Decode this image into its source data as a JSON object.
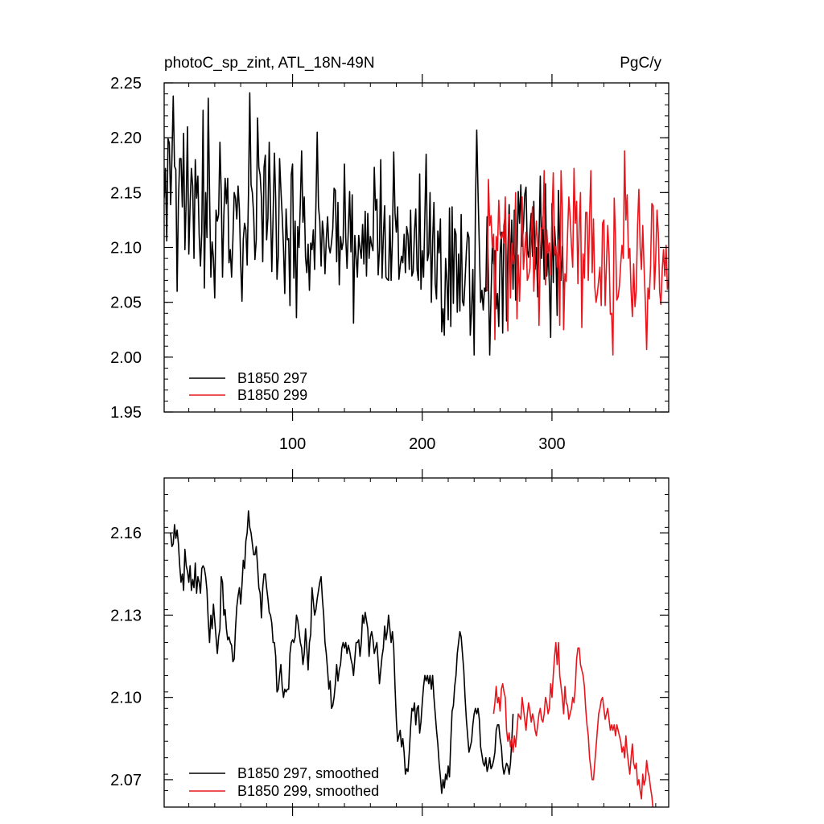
{
  "chart_data": [
    {
      "type": "line",
      "title": "photoC_sp_zint, ATL_18N-49N",
      "units": "PgC/y",
      "xlim": [
        1,
        390
      ],
      "ylim": [
        1.95,
        2.25
      ],
      "xticks": [
        100,
        200,
        300
      ],
      "xtick_labels": [
        "100",
        "200",
        "300"
      ],
      "yticks": [
        1.95,
        2.0,
        2.05,
        2.1,
        2.15,
        2.2,
        2.25
      ],
      "ytick_labels": [
        "1.95",
        "2.00",
        "2.05",
        "2.10",
        "2.15",
        "2.20",
        "2.25"
      ],
      "legend_position": "bottom-left",
      "series": [
        {
          "name": "B1850 297",
          "color": "#000000",
          "x_start": 1,
          "values": [
            2.145,
            2.172,
            2.106,
            2.199,
            2.195,
            2.139,
            2.182,
            2.238,
            2.174,
            2.171,
            2.06,
            2.142,
            2.181,
            2.181,
            2.137,
            2.204,
            2.098,
            2.143,
            2.21,
            2.094,
            2.139,
            2.172,
            2.156,
            2.09,
            2.18,
            2.145,
            2.165,
            2.111,
            2.083,
            2.114,
            2.225,
            2.063,
            2.15,
            2.109,
            2.236,
            2.15,
            2.073,
            2.105,
            2.09,
            2.054,
            2.134,
            2.124,
            2.13,
            2.196,
            2.15,
            2.073,
            2.128,
            2.163,
            2.14,
            2.163,
            2.086,
            2.098,
            2.073,
            2.107,
            2.15,
            2.145,
            2.126,
            2.156,
            2.135,
            2.086,
            2.051,
            2.107,
            2.122,
            2.116,
            2.084,
            2.148,
            2.241,
            2.157,
            2.15,
            2.13,
            2.089,
            2.107,
            2.218,
            2.173,
            2.166,
            2.145,
            2.087,
            2.173,
            2.184,
            2.107,
            2.127,
            2.196,
            2.136,
            2.078,
            2.129,
            2.186,
            2.144,
            2.071,
            2.092,
            2.181,
            2.153,
            2.129,
            2.1,
            2.058,
            2.135,
            2.107,
            2.108,
            2.047,
            2.166,
            2.176,
            2.072,
            2.124,
            2.036,
            2.119,
            2.1,
            2.141,
            2.188,
            2.123,
            2.146,
            2.091,
            2.077,
            2.103,
            2.061,
            2.104,
            2.098,
            2.116,
            2.08,
            2.138,
            2.205,
            2.137,
            2.124,
            2.083,
            2.124,
            2.111,
            2.076,
            2.107,
            2.128,
            2.101,
            2.095,
            2.104,
            2.117,
            2.154,
            2.152,
            2.087,
            2.141,
            2.066,
            2.11,
            2.098,
            2.105,
            2.176,
            2.109,
            2.081,
            2.117,
            2.151,
            2.096,
            2.148,
            2.031,
            2.111,
            2.091,
            2.073,
            2.111,
            2.099,
            2.09,
            2.121,
            2.085,
            2.133,
            2.074,
            2.131,
            2.09,
            2.11,
            2.102,
            2.097,
            2.173,
            2.134,
            2.144,
            2.075,
            2.098,
            2.18,
            2.072,
            2.11,
            2.138,
            2.073,
            2.071,
            2.07,
            2.129,
            2.07,
            2.108,
            2.187,
            2.131,
            2.114,
            2.137,
            2.071,
            2.083,
            2.092,
            2.086,
            2.112,
            2.077,
            2.119,
            2.111,
            2.08,
            2.134,
            2.074,
            2.078,
            2.115,
            2.135,
            2.08,
            2.07,
            2.167,
            2.062,
            2.097,
            2.073,
            2.128,
            2.185,
            2.088,
            2.095,
            2.15,
            2.05,
            2.106,
            2.141,
            2.067,
            2.053,
            2.115,
            2.095,
            2.126,
            2.023,
            2.044,
            2.02,
            2.09,
            2.07,
            2.034,
            2.136,
            2.028,
            2.137,
            2.049,
            2.117,
            2.112,
            2.041,
            2.094,
            2.042,
            2.13,
            2.051,
            2.047,
            2.07,
            2.096,
            2.114,
            2.109,
            2.02,
            2.042,
            2.08,
            2.002,
            2.137,
            2.207,
            2.15,
            2.101,
            2.05,
            2.061,
            2.043,
            2.063,
            2.06,
            2.128,
            2.074,
            2.002,
            2.055,
            2.101,
            2.085,
            2.097,
            2.044,
            2.058,
            2.028,
            2.094,
            2.114,
            2.022,
            2.12,
            2.13,
            2.033,
            2.096,
            2.139,
            2.073,
            2.125,
            2.062,
            2.134,
            2.052,
            2.093,
            2.151,
            2.122,
            2.157,
            2.101,
            2.119,
            2.148,
            2.155,
            2.097,
            2.091,
            2.114,
            2.131,
            2.092,
            2.142,
            2.08,
            2.1,
            2.055,
            2.107,
            2.165,
            2.09,
            2.128,
            2.071,
            2.158,
            2.074,
            2.097,
            2.066,
            2.018,
            2.14,
            2.068,
            2.119,
            2.097,
            2.038,
            2.152,
            2.099,
            2.07,
            2.101,
            2.061
          ]
        },
        {
          "name": "B1850 299",
          "color": "#e8161c",
          "x_start": 250,
          "values": [
            2.06,
            2.162,
            2.12,
            2.129,
            2.1,
            2.112,
            2.016,
            2.11,
            2.097,
            2.143,
            2.112,
            2.108,
            2.114,
            2.104,
            2.146,
            2.077,
            2.024,
            2.13,
            2.054,
            2.104,
            2.085,
            2.095,
            2.15,
            2.035,
            2.093,
            2.051,
            2.092,
            2.146,
            2.08,
            2.097,
            2.114,
            2.07,
            2.074,
            2.081,
            2.115,
            2.137,
            2.06,
            2.094,
            2.124,
            2.104,
            2.029,
            2.095,
            2.118,
            2.117,
            2.17,
            2.066,
            2.116,
            2.095,
            2.104,
            2.075,
            2.125,
            2.168,
            2.093,
            2.101,
            2.082,
            2.107,
            2.029,
            2.17,
            2.134,
            2.025,
            2.076,
            2.069,
            2.111,
            2.146,
            2.128,
            2.102,
            2.082,
            2.172,
            2.122,
            2.142,
            2.067,
            2.119,
            2.15,
            2.027,
            2.094,
            2.072,
            2.132,
            2.132,
            2.07,
            2.128,
            2.17,
            2.077,
            2.126,
            2.064,
            2.05,
            2.058,
            2.07,
            2.082,
            2.047,
            2.122,
            2.125,
            2.047,
            2.084,
            2.12,
            2.094,
            2.039,
            2.04,
            2.002,
            2.145,
            2.11,
            2.052,
            2.055,
            2.065,
            2.085,
            2.102,
            2.09,
            2.188,
            2.125,
            2.148,
            2.09,
            2.099,
            2.06,
            2.037,
            2.085,
            2.046,
            2.061,
            2.12,
            2.153,
            2.1,
            2.08,
            2.12,
            2.082,
            2.05,
            2.007,
            2.063,
            2.053,
            2.082,
            2.14,
            2.138,
            2.062,
            2.09,
            2.134,
            2.113,
            2.06,
            2.048,
            2.079,
            2.098,
            2.074,
            2.102,
            2.062,
            2.07,
            2.111,
            2.028,
            2.09,
            2.062,
            2.05,
            2.161,
            2.08,
            2.055,
            2.045,
            2.0,
            2.114
          ]
        }
      ]
    },
    {
      "type": "line",
      "title": "",
      "xlim": [
        1,
        390
      ],
      "ylim": [
        2.06,
        2.18
      ],
      "xticks": [
        100,
        200,
        300
      ],
      "xtick_labels": [
        "",
        "",
        ""
      ],
      "yticks": [
        2.07,
        2.1,
        2.13,
        2.16
      ],
      "ytick_labels": [
        "2.07",
        "2.10",
        "2.13",
        "2.16"
      ],
      "legend_position": "bottom-left",
      "series": [
        {
          "name": "B1850 297, smoothed",
          "color": "#000000",
          "x_start": 6,
          "values": [
            2.16,
            2.155,
            2.156,
            2.163,
            2.158,
            2.161,
            2.156,
            2.148,
            2.142,
            2.145,
            2.139,
            2.154,
            2.148,
            2.146,
            2.142,
            2.148,
            2.139,
            2.143,
            2.14,
            2.149,
            2.138,
            2.144,
            2.142,
            2.138,
            2.147,
            2.148,
            2.147,
            2.144,
            2.139,
            2.128,
            2.12,
            2.13,
            2.125,
            2.134,
            2.128,
            2.122,
            2.116,
            2.122,
            2.125,
            2.144,
            2.142,
            2.13,
            2.132,
            2.125,
            2.121,
            2.122,
            2.12,
            2.119,
            2.113,
            2.114,
            2.125,
            2.133,
            2.137,
            2.14,
            2.134,
            2.141,
            2.15,
            2.147,
            2.157,
            2.16,
            2.168,
            2.162,
            2.16,
            2.156,
            2.152,
            2.152,
            2.155,
            2.148,
            2.14,
            2.138,
            2.129,
            2.14,
            2.145,
            2.145,
            2.14,
            2.136,
            2.131,
            2.13,
            2.127,
            2.12,
            2.12,
            2.115,
            2.102,
            2.103,
            2.108,
            2.112,
            2.104,
            2.1,
            2.103,
            2.102,
            2.103,
            2.103,
            2.116,
            2.12,
            2.121,
            2.12,
            2.122,
            2.13,
            2.128,
            2.124,
            2.12,
            2.118,
            2.112,
            2.116,
            2.125,
            2.118,
            2.11,
            2.12,
            2.123,
            2.14,
            2.135,
            2.13,
            2.132,
            2.136,
            2.139,
            2.142,
            2.144,
            2.136,
            2.13,
            2.12,
            2.116,
            2.11,
            2.103,
            2.106,
            2.096,
            2.097,
            2.1,
            2.105,
            2.112,
            2.106,
            2.11,
            2.112,
            2.118,
            2.12,
            2.118,
            2.12,
            2.116,
            2.119,
            2.117,
            2.114,
            2.112,
            2.108,
            2.114,
            2.12,
            2.12,
            2.121,
            2.115,
            2.12,
            2.13,
            2.127,
            2.131,
            2.128,
            2.125,
            2.115,
            2.122,
            2.124,
            2.121,
            2.116,
            2.118,
            2.12,
            2.113,
            2.105,
            2.11,
            2.115,
            2.118,
            2.126,
            2.121,
            2.124,
            2.13,
            2.125,
            2.12,
            2.124,
            2.118,
            2.104,
            2.092,
            2.084,
            2.086,
            2.088,
            2.082,
            2.085,
            2.08,
            2.072,
            2.074,
            2.073,
            2.08,
            2.089,
            2.096,
            2.095,
            2.098,
            2.09,
            2.096,
            2.097,
            2.087,
            2.091,
            2.098,
            2.104,
            2.108,
            2.106,
            2.108,
            2.105,
            2.108,
            2.103,
            2.108,
            2.1,
            2.094,
            2.088,
            2.083,
            2.076,
            2.071,
            2.065,
            2.07,
            2.067,
            2.072,
            2.07,
            2.075,
            2.071,
            2.084,
            2.095,
            2.097,
            2.104,
            2.108,
            2.116,
            2.12,
            2.124,
            2.122,
            2.116,
            2.11,
            2.1,
            2.092,
            2.086,
            2.08,
            2.082,
            2.084,
            2.09,
            2.094,
            2.096,
            2.094,
            2.096,
            2.092,
            2.082,
            2.079,
            2.076,
            2.075,
            2.078,
            2.073,
            2.075,
            2.078,
            2.074,
            2.075,
            2.077,
            2.08,
            2.088,
            2.09,
            2.09,
            2.085,
            2.082,
            2.075,
            2.072,
            2.074,
            2.076,
            2.075,
            2.072,
            2.076,
            2.084,
            2.094
          ]
        },
        {
          "name": "B1850 299, smoothed",
          "color": "#e8161c",
          "x_start": 255,
          "values": [
            2.094,
            2.098,
            2.104,
            2.098,
            2.1,
            2.095,
            2.103,
            2.105,
            2.102,
            2.1,
            2.088,
            2.084,
            2.087,
            2.082,
            2.085,
            2.08,
            2.086,
            2.082,
            2.088,
            2.094,
            2.093,
            2.092,
            2.1,
            2.096,
            2.092,
            2.088,
            2.094,
            2.098,
            2.095,
            2.091,
            2.094,
            2.092,
            2.088,
            2.086,
            2.09,
            2.094,
            2.096,
            2.092,
            2.091,
            2.094,
            2.1,
            2.098,
            2.094,
            2.096,
            2.105,
            2.1,
            2.108,
            2.115,
            2.12,
            2.112,
            2.12,
            2.108,
            2.104,
            2.1,
            2.094,
            2.104,
            2.098,
            2.097,
            2.092,
            2.094,
            2.096,
            2.1,
            2.098,
            2.104,
            2.114,
            2.118,
            2.118,
            2.112,
            2.11,
            2.108,
            2.104,
            2.096,
            2.09,
            2.086,
            2.078,
            2.074,
            2.07,
            2.07,
            2.076,
            2.082,
            2.088,
            2.094,
            2.096,
            2.099,
            2.1,
            2.096,
            2.092,
            2.094,
            2.096,
            2.092,
            2.088,
            2.09,
            2.088,
            2.09,
            2.086,
            2.09,
            2.088,
            2.086,
            2.084,
            2.08,
            2.082,
            2.078,
            2.086,
            2.08,
            2.076,
            2.072,
            2.078,
            2.083,
            2.076,
            2.074,
            2.076,
            2.068,
            2.07,
            2.066,
            2.063,
            2.072,
            2.068,
            2.07,
            2.077,
            2.073,
            2.071,
            2.067,
            2.064,
            2.059
          ]
        }
      ]
    }
  ]
}
